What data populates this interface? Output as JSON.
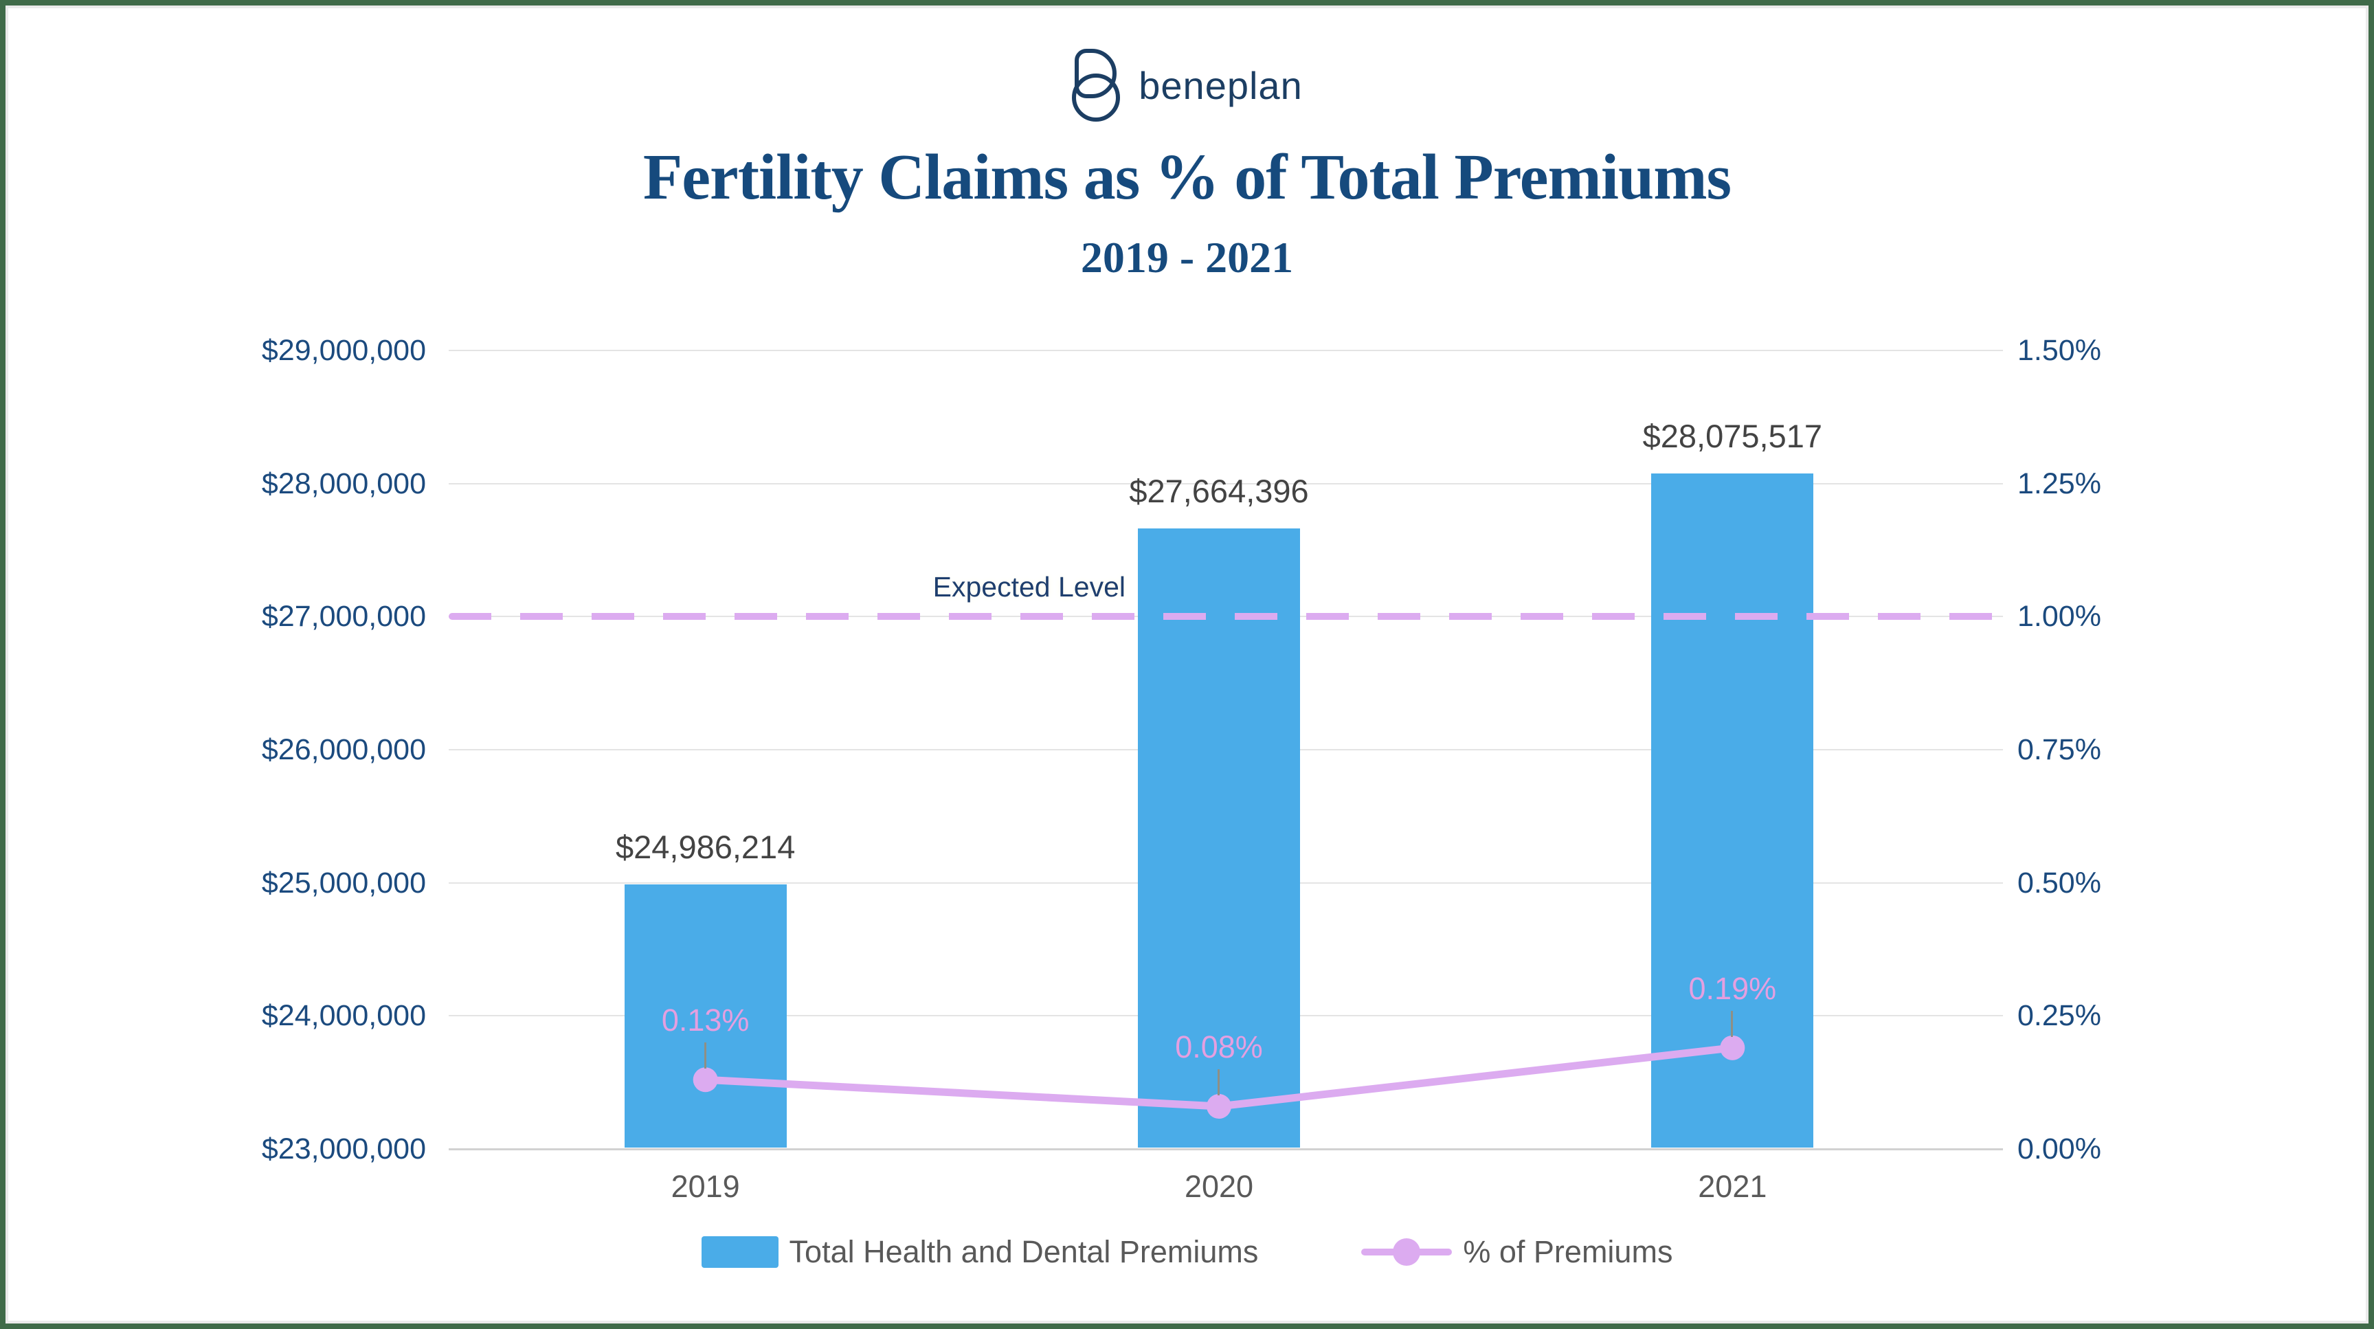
{
  "page": {
    "background": "#ffffff",
    "border_color": "#406b49"
  },
  "logo": {
    "brand": "beneplan",
    "color": "#1c3e63"
  },
  "header": {
    "title": "Fertility Claims as % of Total Premiums",
    "subtitle": "2019 - 2021",
    "color": "#164a7d"
  },
  "chart_data": {
    "type": "bar",
    "subtype": "combo-bar-line",
    "title": "Fertility Claims as % of Total Premiums",
    "subtitle": "2019 - 2021",
    "categories": [
      "2019",
      "2020",
      "2021"
    ],
    "series": [
      {
        "name": "Total Health and Dental Premiums",
        "type": "bar",
        "axis": "left",
        "values": [
          24986214,
          27664396,
          28075517
        ],
        "value_labels": [
          "$24,986,214",
          "$27,664,396",
          "$28,075,517"
        ],
        "color": "#4aace8"
      },
      {
        "name": "% of Premiums",
        "type": "line",
        "axis": "right",
        "values": [
          0.13,
          0.08,
          0.19
        ],
        "value_labels": [
          "0.13%",
          "0.08%",
          "0.19%"
        ],
        "color": "#dcabf0",
        "value_label_color": "#e59fe0"
      }
    ],
    "reference_line": {
      "label": "Expected Level",
      "value": 1.0,
      "axis": "right",
      "style": "dashed",
      "color": "#dcabf0"
    },
    "left_axis": {
      "min": 23000000,
      "max": 29000000,
      "step": 1000000,
      "tick_labels": [
        "$29,000,000",
        "$28,000,000",
        "$27,000,000",
        "$26,000,000",
        "$25,000,000",
        "$24,000,000",
        "$23,000,000"
      ],
      "color": "#1b4a7e"
    },
    "right_axis": {
      "min": 0.0,
      "max": 1.5,
      "step": 0.25,
      "tick_labels": [
        "1.50%",
        "1.25%",
        "1.00%",
        "0.75%",
        "0.50%",
        "0.25%",
        "0.00%"
      ],
      "color": "#1b4a7e"
    },
    "x_axis": {
      "labels_color": "#595959"
    },
    "grid": true,
    "legend_position": "bottom"
  },
  "legend": {
    "items": [
      {
        "label": "Total Health and Dental Premiums",
        "marker": "bar-swatch",
        "color": "#4aace8"
      },
      {
        "label": "% of Premiums",
        "marker": "line-dot",
        "color": "#dcabf0"
      }
    ]
  }
}
